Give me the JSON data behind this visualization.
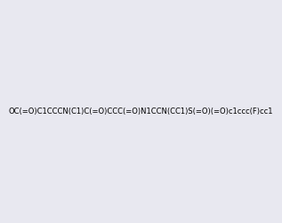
{
  "smiles": "OC(=O)C1CCCN(C1)C(=O)CCC(=O)N1CCN(CC1)S(=O)(=O)c1ccc(F)cc1",
  "image_size": 300,
  "background_color": "#e8e8f0"
}
